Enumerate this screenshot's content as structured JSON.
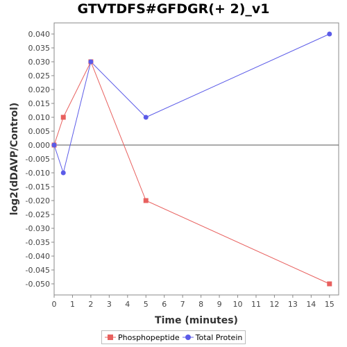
{
  "chart_data": {
    "type": "line",
    "title": "GTVTDFS#GFDGR(+ 2)_v1",
    "xlabel": "Time (minutes)",
    "ylabel": "log2(dDAVP/Control)",
    "xlim": [
      0,
      15.5
    ],
    "ylim": [
      -0.054,
      0.044
    ],
    "x_ticks": [
      0,
      1,
      2,
      3,
      4,
      5,
      6,
      7,
      8,
      9,
      10,
      11,
      12,
      13,
      14,
      15
    ],
    "y_ticks": [
      0.04,
      0.035,
      0.03,
      0.025,
      0.02,
      0.015,
      0.01,
      0.005,
      0.0,
      -0.005,
      -0.01,
      -0.015,
      -0.02,
      -0.025,
      -0.03,
      -0.035,
      -0.04,
      -0.045,
      -0.05
    ],
    "y_tick_labels": [
      "0.040",
      "0.035",
      "0.030",
      "0.025",
      "0.020",
      "0.015",
      "0.010",
      "0.005",
      "0.000",
      "-0.005",
      "-0.010",
      "-0.015",
      "-0.020",
      "-0.025",
      "-0.030",
      "-0.035",
      "-0.040",
      "-0.045",
      "-0.050"
    ],
    "zero_line": true,
    "grid": false,
    "legend_position": "bottom",
    "series": [
      {
        "name": "Phosphopeptide",
        "color": "#e8605e",
        "marker": "square",
        "x": [
          0,
          0.5,
          2,
          5,
          15
        ],
        "y": [
          0.0,
          0.01,
          0.03,
          -0.02,
          -0.05
        ]
      },
      {
        "name": "Total Protein",
        "color": "#5b5be8",
        "marker": "circle",
        "x": [
          0,
          0.5,
          2,
          5,
          15
        ],
        "y": [
          0.0,
          -0.01,
          0.03,
          0.01,
          0.04
        ]
      }
    ]
  }
}
